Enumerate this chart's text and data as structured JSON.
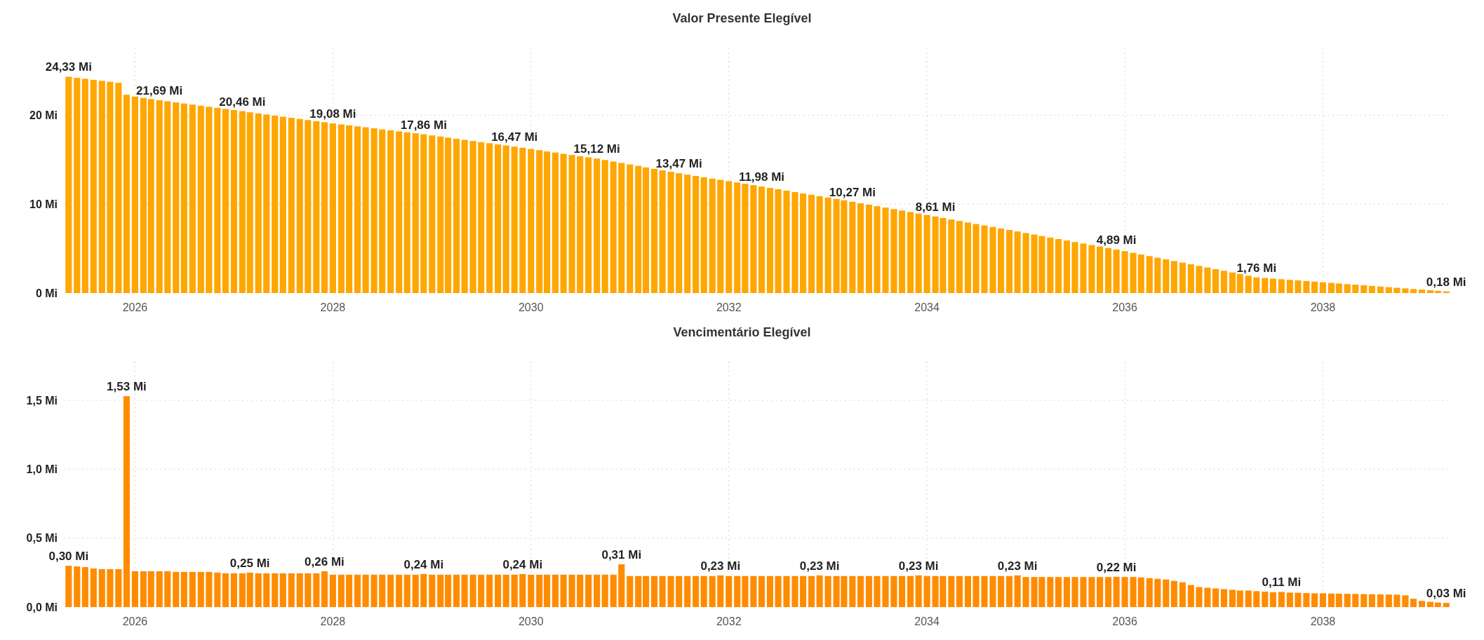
{
  "chart_data": [
    {
      "type": "bar",
      "title": "Valor Presente Elegível",
      "grid": true,
      "x": [
        "2025-05",
        "2025-06",
        "2025-07",
        "2025-08",
        "2025-09",
        "2025-10",
        "2025-11",
        "2025-12",
        "2026-01",
        "2026-02",
        "2026-03",
        "2026-04",
        "2026-05",
        "2026-06",
        "2026-07",
        "2026-08",
        "2026-09",
        "2026-10",
        "2026-11",
        "2026-12",
        "2027-01",
        "2027-02",
        "2027-03",
        "2027-04",
        "2027-05",
        "2027-06",
        "2027-07",
        "2027-08",
        "2027-09",
        "2027-10",
        "2027-11",
        "2027-12",
        "2028-01",
        "2028-02",
        "2028-03",
        "2028-04",
        "2028-05",
        "2028-06",
        "2028-07",
        "2028-08",
        "2028-09",
        "2028-10",
        "2028-11",
        "2028-12",
        "2029-01",
        "2029-02",
        "2029-03",
        "2029-04",
        "2029-05",
        "2029-06",
        "2029-07",
        "2029-08",
        "2029-09",
        "2029-10",
        "2029-11",
        "2029-12",
        "2030-01",
        "2030-02",
        "2030-03",
        "2030-04",
        "2030-05",
        "2030-06",
        "2030-07",
        "2030-08",
        "2030-09",
        "2030-10",
        "2030-11",
        "2030-12",
        "2031-01",
        "2031-02",
        "2031-03",
        "2031-04",
        "2031-05",
        "2031-06",
        "2031-07",
        "2031-08",
        "2031-09",
        "2031-10",
        "2031-11",
        "2031-12",
        "2032-01",
        "2032-02",
        "2032-03",
        "2032-04",
        "2032-05",
        "2032-06",
        "2032-07",
        "2032-08",
        "2032-09",
        "2032-10",
        "2032-11",
        "2032-12",
        "2033-01",
        "2033-02",
        "2033-03",
        "2033-04",
        "2033-05",
        "2033-06",
        "2033-07",
        "2033-08",
        "2033-09",
        "2033-10",
        "2033-11",
        "2033-12",
        "2034-01",
        "2034-02",
        "2034-03",
        "2034-04",
        "2034-05",
        "2034-06",
        "2034-07",
        "2034-08",
        "2034-09",
        "2034-10",
        "2034-11",
        "2034-12",
        "2035-01",
        "2035-02",
        "2035-03",
        "2035-04",
        "2035-05",
        "2035-06",
        "2035-07",
        "2035-08",
        "2035-09",
        "2035-10",
        "2035-11",
        "2035-12",
        "2036-01",
        "2036-02",
        "2036-03",
        "2036-04",
        "2036-05",
        "2036-06",
        "2036-07",
        "2036-08",
        "2036-09",
        "2036-10",
        "2036-11",
        "2036-12",
        "2037-01",
        "2037-02",
        "2037-03",
        "2037-04",
        "2037-05",
        "2037-06",
        "2037-07",
        "2037-08",
        "2037-09",
        "2037-10",
        "2037-11",
        "2037-12",
        "2038-01",
        "2038-02",
        "2038-03",
        "2038-04",
        "2038-05",
        "2038-06",
        "2038-07",
        "2038-08",
        "2038-09",
        "2038-10",
        "2038-11",
        "2038-12",
        "2039-01",
        "2039-02",
        "2039-03",
        "2039-04"
      ],
      "xlim": [
        "2025-04-16",
        "2039-04-16"
      ],
      "xticks": [
        "2026",
        "2028",
        "2030",
        "2032",
        "2034",
        "2036",
        "2038"
      ],
      "ylim": [
        0,
        27.6
      ],
      "yticks": [
        {
          "value": 0,
          "label": "0 Mi"
        },
        {
          "value": 10,
          "label": "10 Mi"
        },
        {
          "value": 20,
          "label": "20 Mi"
        }
      ],
      "series": [
        {
          "color": "#ffa600",
          "values": [
            24.33,
            24.2,
            24.1,
            23.98,
            23.87,
            23.76,
            23.65,
            22.3,
            22.1,
            21.95,
            21.82,
            21.69,
            21.57,
            21.44,
            21.32,
            21.2,
            21.07,
            20.95,
            20.83,
            20.71,
            20.58,
            20.46,
            20.33,
            20.21,
            20.08,
            19.96,
            19.83,
            19.71,
            19.58,
            19.46,
            19.33,
            19.21,
            19.08,
            18.97,
            18.86,
            18.75,
            18.64,
            18.53,
            18.41,
            18.3,
            18.19,
            18.08,
            17.97,
            17.86,
            17.73,
            17.61,
            17.48,
            17.35,
            17.23,
            17.1,
            16.97,
            16.85,
            16.72,
            16.6,
            16.47,
            16.34,
            16.2,
            16.07,
            15.93,
            15.8,
            15.66,
            15.53,
            15.39,
            15.26,
            15.12,
            14.96,
            14.79,
            14.63,
            14.46,
            14.3,
            14.13,
            13.97,
            13.8,
            13.64,
            13.47,
            13.32,
            13.17,
            13.02,
            12.87,
            12.73,
            12.58,
            12.43,
            12.28,
            12.13,
            11.98,
            11.82,
            11.67,
            11.51,
            11.36,
            11.2,
            11.05,
            10.89,
            10.74,
            10.58,
            10.43,
            10.27,
            10.1,
            9.94,
            9.77,
            9.61,
            9.44,
            9.27,
            9.11,
            8.94,
            8.78,
            8.61,
            8.44,
            8.27,
            8.1,
            7.93,
            7.76,
            7.6,
            7.43,
            7.26,
            7.09,
            6.92,
            6.75,
            6.58,
            6.41,
            6.24,
            6.07,
            5.9,
            5.73,
            5.57,
            5.4,
            5.23,
            5.06,
            4.89,
            4.71,
            4.52,
            4.34,
            4.15,
            3.97,
            3.79,
            3.6,
            3.42,
            3.23,
            3.05,
            2.87,
            2.68,
            2.5,
            2.31,
            2.13,
            1.94,
            1.76,
            1.69,
            1.62,
            1.55,
            1.48,
            1.42,
            1.35,
            1.28,
            1.21,
            1.14,
            1.07,
            1.0,
            0.94,
            0.87,
            0.8,
            0.73,
            0.66,
            0.59,
            0.52,
            0.45,
            0.39,
            0.32,
            0.25,
            0.18
          ],
          "value_labels": [
            "24,33 Mi",
            null,
            null,
            null,
            null,
            null,
            null,
            null,
            null,
            null,
            null,
            "21,69 Mi",
            null,
            null,
            null,
            null,
            null,
            null,
            null,
            null,
            null,
            "20,46 Mi",
            null,
            null,
            null,
            null,
            null,
            null,
            null,
            null,
            null,
            null,
            "19,08 Mi",
            null,
            null,
            null,
            null,
            null,
            null,
            null,
            null,
            null,
            null,
            "17,86 Mi",
            null,
            null,
            null,
            null,
            null,
            null,
            null,
            null,
            null,
            null,
            "16,47 Mi",
            null,
            null,
            null,
            null,
            null,
            null,
            null,
            null,
            null,
            "15,12 Mi",
            null,
            null,
            null,
            null,
            null,
            null,
            null,
            null,
            null,
            "13,47 Mi",
            null,
            null,
            null,
            null,
            null,
            null,
            null,
            null,
            null,
            "11,98 Mi",
            null,
            null,
            null,
            null,
            null,
            null,
            null,
            null,
            null,
            null,
            "10,27 Mi",
            null,
            null,
            null,
            null,
            null,
            null,
            null,
            null,
            null,
            "8,61 Mi",
            null,
            null,
            null,
            null,
            null,
            null,
            null,
            null,
            null,
            null,
            null,
            null,
            null,
            null,
            null,
            null,
            null,
            null,
            null,
            null,
            null,
            "4,89 Mi",
            null,
            null,
            null,
            null,
            null,
            null,
            null,
            null,
            null,
            null,
            null,
            null,
            null,
            null,
            null,
            null,
            "1,76 Mi",
            null,
            null,
            null,
            null,
            null,
            null,
            null,
            null,
            null,
            null,
            null,
            null,
            null,
            null,
            null,
            null,
            null,
            null,
            null,
            null,
            null,
            null,
            "0,18 Mi"
          ]
        }
      ]
    },
    {
      "type": "bar",
      "title": "Vencimentário Elegível",
      "grid": true,
      "x": [
        "2025-05",
        "2025-06",
        "2025-07",
        "2025-08",
        "2025-09",
        "2025-10",
        "2025-11",
        "2025-12",
        "2026-01",
        "2026-02",
        "2026-03",
        "2026-04",
        "2026-05",
        "2026-06",
        "2026-07",
        "2026-08",
        "2026-09",
        "2026-10",
        "2026-11",
        "2026-12",
        "2027-01",
        "2027-02",
        "2027-03",
        "2027-04",
        "2027-05",
        "2027-06",
        "2027-07",
        "2027-08",
        "2027-09",
        "2027-10",
        "2027-11",
        "2027-12",
        "2028-01",
        "2028-02",
        "2028-03",
        "2028-04",
        "2028-05",
        "2028-06",
        "2028-07",
        "2028-08",
        "2028-09",
        "2028-10",
        "2028-11",
        "2028-12",
        "2029-01",
        "2029-02",
        "2029-03",
        "2029-04",
        "2029-05",
        "2029-06",
        "2029-07",
        "2029-08",
        "2029-09",
        "2029-10",
        "2029-11",
        "2029-12",
        "2030-01",
        "2030-02",
        "2030-03",
        "2030-04",
        "2030-05",
        "2030-06",
        "2030-07",
        "2030-08",
        "2030-09",
        "2030-10",
        "2030-11",
        "2030-12",
        "2031-01",
        "2031-02",
        "2031-03",
        "2031-04",
        "2031-05",
        "2031-06",
        "2031-07",
        "2031-08",
        "2031-09",
        "2031-10",
        "2031-11",
        "2031-12",
        "2032-01",
        "2032-02",
        "2032-03",
        "2032-04",
        "2032-05",
        "2032-06",
        "2032-07",
        "2032-08",
        "2032-09",
        "2032-10",
        "2032-11",
        "2032-12",
        "2033-01",
        "2033-02",
        "2033-03",
        "2033-04",
        "2033-05",
        "2033-06",
        "2033-07",
        "2033-08",
        "2033-09",
        "2033-10",
        "2033-11",
        "2033-12",
        "2034-01",
        "2034-02",
        "2034-03",
        "2034-04",
        "2034-05",
        "2034-06",
        "2034-07",
        "2034-08",
        "2034-09",
        "2034-10",
        "2034-11",
        "2034-12",
        "2035-01",
        "2035-02",
        "2035-03",
        "2035-04",
        "2035-05",
        "2035-06",
        "2035-07",
        "2035-08",
        "2035-09",
        "2035-10",
        "2035-11",
        "2035-12",
        "2036-01",
        "2036-02",
        "2036-03",
        "2036-04",
        "2036-05",
        "2036-06",
        "2036-07",
        "2036-08",
        "2036-09",
        "2036-10",
        "2036-11",
        "2036-12",
        "2037-01",
        "2037-02",
        "2037-03",
        "2037-04",
        "2037-05",
        "2037-06",
        "2037-07",
        "2037-08",
        "2037-09",
        "2037-10",
        "2037-11",
        "2037-12",
        "2038-01",
        "2038-02",
        "2038-03",
        "2038-04",
        "2038-05",
        "2038-06",
        "2038-07",
        "2038-08",
        "2038-09",
        "2038-10",
        "2038-11",
        "2038-12",
        "2039-01",
        "2039-02",
        "2039-03",
        "2039-04"
      ],
      "xlim": [
        "2025-04-16",
        "2039-04-16"
      ],
      "xticks": [
        "2026",
        "2028",
        "2030",
        "2032",
        "2034",
        "2036",
        "2038"
      ],
      "ylim": [
        0,
        1.78
      ],
      "yticks": [
        {
          "value": 0,
          "label": "0,0 Mi"
        },
        {
          "value": 0.5,
          "label": "0,5 Mi"
        },
        {
          "value": 1,
          "label": "1,0 Mi"
        },
        {
          "value": 1.5,
          "label": "1,5 Mi"
        }
      ],
      "series": [
        {
          "color": "#ff8c00",
          "values": [
            0.3,
            0.295,
            0.29,
            0.28,
            0.275,
            0.275,
            0.275,
            1.53,
            0.26,
            0.26,
            0.26,
            0.26,
            0.26,
            0.255,
            0.255,
            0.255,
            0.255,
            0.255,
            0.25,
            0.245,
            0.245,
            0.245,
            0.25,
            0.245,
            0.245,
            0.245,
            0.245,
            0.245,
            0.245,
            0.245,
            0.245,
            0.26,
            0.235,
            0.235,
            0.235,
            0.235,
            0.235,
            0.235,
            0.235,
            0.235,
            0.235,
            0.235,
            0.235,
            0.24,
            0.235,
            0.235,
            0.235,
            0.235,
            0.235,
            0.235,
            0.235,
            0.235,
            0.235,
            0.235,
            0.235,
            0.24,
            0.235,
            0.235,
            0.235,
            0.235,
            0.235,
            0.235,
            0.235,
            0.235,
            0.235,
            0.235,
            0.235,
            0.31,
            0.225,
            0.225,
            0.225,
            0.225,
            0.225,
            0.225,
            0.225,
            0.225,
            0.225,
            0.225,
            0.225,
            0.23,
            0.225,
            0.225,
            0.225,
            0.225,
            0.225,
            0.225,
            0.225,
            0.225,
            0.225,
            0.225,
            0.225,
            0.23,
            0.225,
            0.225,
            0.225,
            0.225,
            0.225,
            0.225,
            0.225,
            0.225,
            0.225,
            0.225,
            0.225,
            0.23,
            0.225,
            0.225,
            0.225,
            0.225,
            0.225,
            0.225,
            0.225,
            0.225,
            0.225,
            0.225,
            0.225,
            0.23,
            0.218,
            0.218,
            0.218,
            0.218,
            0.218,
            0.218,
            0.218,
            0.218,
            0.218,
            0.218,
            0.218,
            0.22,
            0.218,
            0.218,
            0.215,
            0.21,
            0.205,
            0.2,
            0.19,
            0.18,
            0.16,
            0.145,
            0.14,
            0.135,
            0.13,
            0.125,
            0.12,
            0.12,
            0.115,
            0.112,
            0.108,
            0.11,
            0.105,
            0.104,
            0.102,
            0.1,
            0.1,
            0.098,
            0.097,
            0.096,
            0.095,
            0.094,
            0.093,
            0.092,
            0.091,
            0.09,
            0.085,
            0.06,
            0.045,
            0.038,
            0.033,
            0.03
          ],
          "value_labels": [
            "0,30 Mi",
            null,
            null,
            null,
            null,
            null,
            null,
            "1,53 Mi",
            null,
            null,
            null,
            null,
            null,
            null,
            null,
            null,
            null,
            null,
            null,
            null,
            null,
            null,
            "0,25 Mi",
            null,
            null,
            null,
            null,
            null,
            null,
            null,
            null,
            "0,26 Mi",
            null,
            null,
            null,
            null,
            null,
            null,
            null,
            null,
            null,
            null,
            null,
            "0,24 Mi",
            null,
            null,
            null,
            null,
            null,
            null,
            null,
            null,
            null,
            null,
            null,
            "0,24 Mi",
            null,
            null,
            null,
            null,
            null,
            null,
            null,
            null,
            null,
            null,
            null,
            "0,31 Mi",
            null,
            null,
            null,
            null,
            null,
            null,
            null,
            null,
            null,
            null,
            null,
            "0,23 Mi",
            null,
            null,
            null,
            null,
            null,
            null,
            null,
            null,
            null,
            null,
            null,
            "0,23 Mi",
            null,
            null,
            null,
            null,
            null,
            null,
            null,
            null,
            null,
            null,
            null,
            "0,23 Mi",
            null,
            null,
            null,
            null,
            null,
            null,
            null,
            null,
            null,
            null,
            null,
            "0,23 Mi",
            null,
            null,
            null,
            null,
            null,
            null,
            null,
            null,
            null,
            null,
            null,
            "0,22 Mi",
            null,
            null,
            null,
            null,
            null,
            null,
            null,
            null,
            null,
            null,
            null,
            null,
            null,
            null,
            null,
            null,
            null,
            null,
            null,
            "0,11 Mi",
            null,
            null,
            null,
            null,
            null,
            null,
            null,
            null,
            null,
            null,
            null,
            null,
            null,
            null,
            null,
            null,
            null,
            null,
            null,
            "0,03 Mi"
          ]
        }
      ]
    }
  ]
}
